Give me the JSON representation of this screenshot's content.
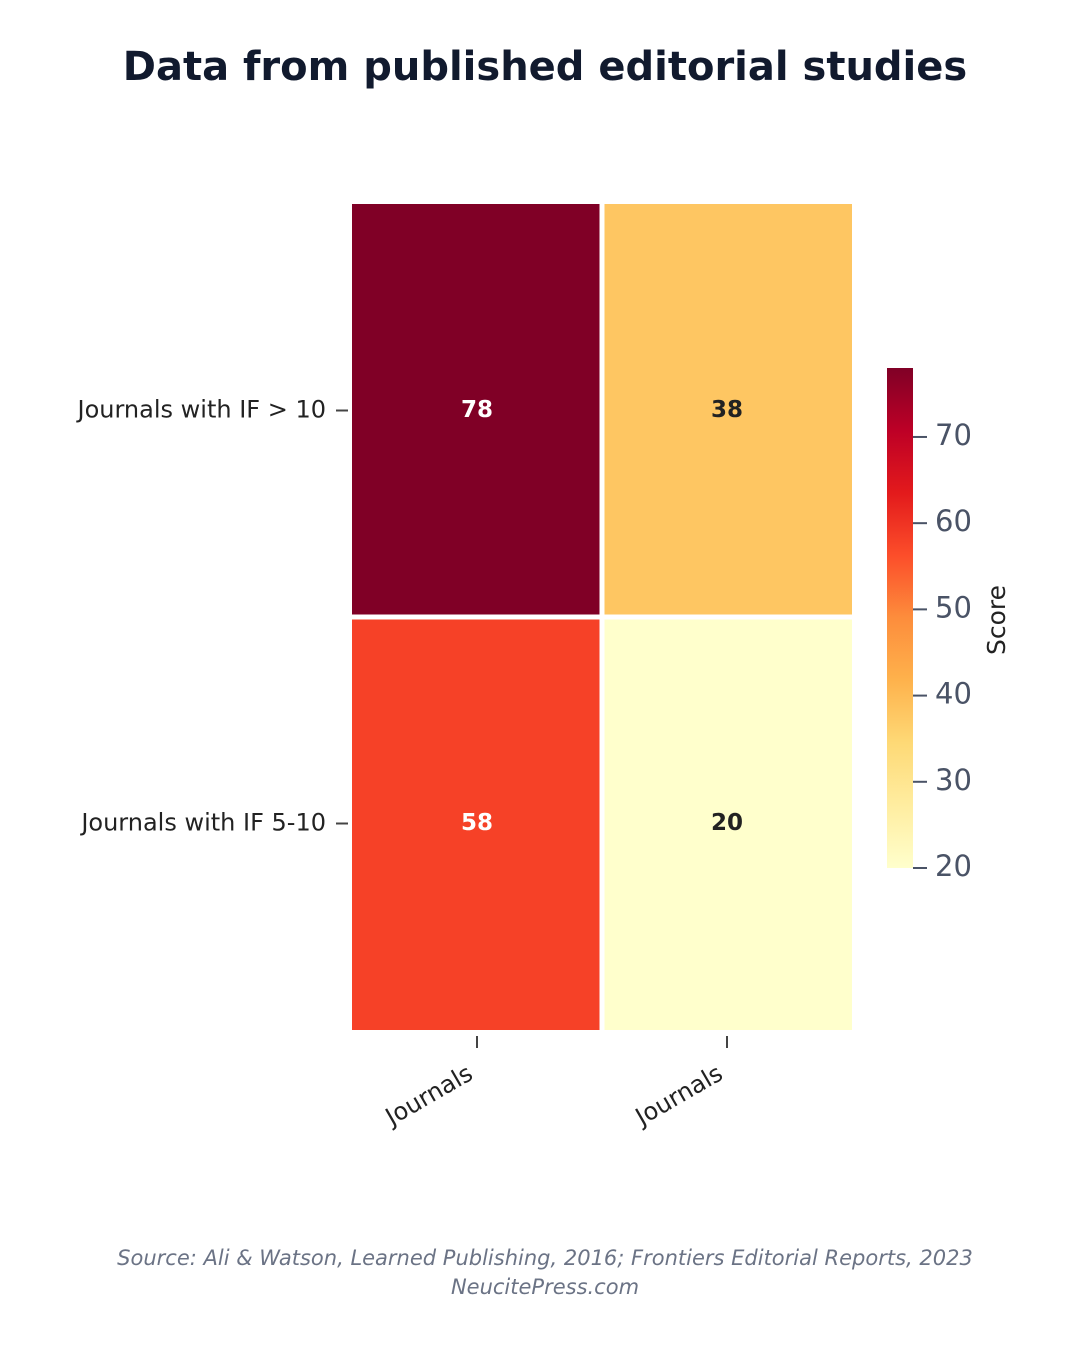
{
  "chart_data": {
    "type": "heatmap",
    "title": "Data from published editorial studies",
    "x": [
      "Journals",
      "Journals"
    ],
    "y": [
      "Journals with IF > 10",
      "Journals with IF 5-10"
    ],
    "z": [
      [
        78,
        38
      ],
      [
        58,
        20
      ]
    ],
    "colorscale": [
      "#ffffcc",
      "#ffeda0",
      "#fed976",
      "#feb24c",
      "#fd8d3c",
      "#fc4e2a",
      "#e31a1c",
      "#bd0026",
      "#800026"
    ],
    "zlim": [
      20,
      78
    ],
    "colorbar_title": "Score",
    "colorbar_ticks": [
      20,
      30,
      40,
      50,
      60,
      70
    ],
    "source": "Source: Ali & Watson, Learned Publishing, 2016; Frontiers Editorial Reports, 2023",
    "credit": "NeucitePress.com"
  }
}
